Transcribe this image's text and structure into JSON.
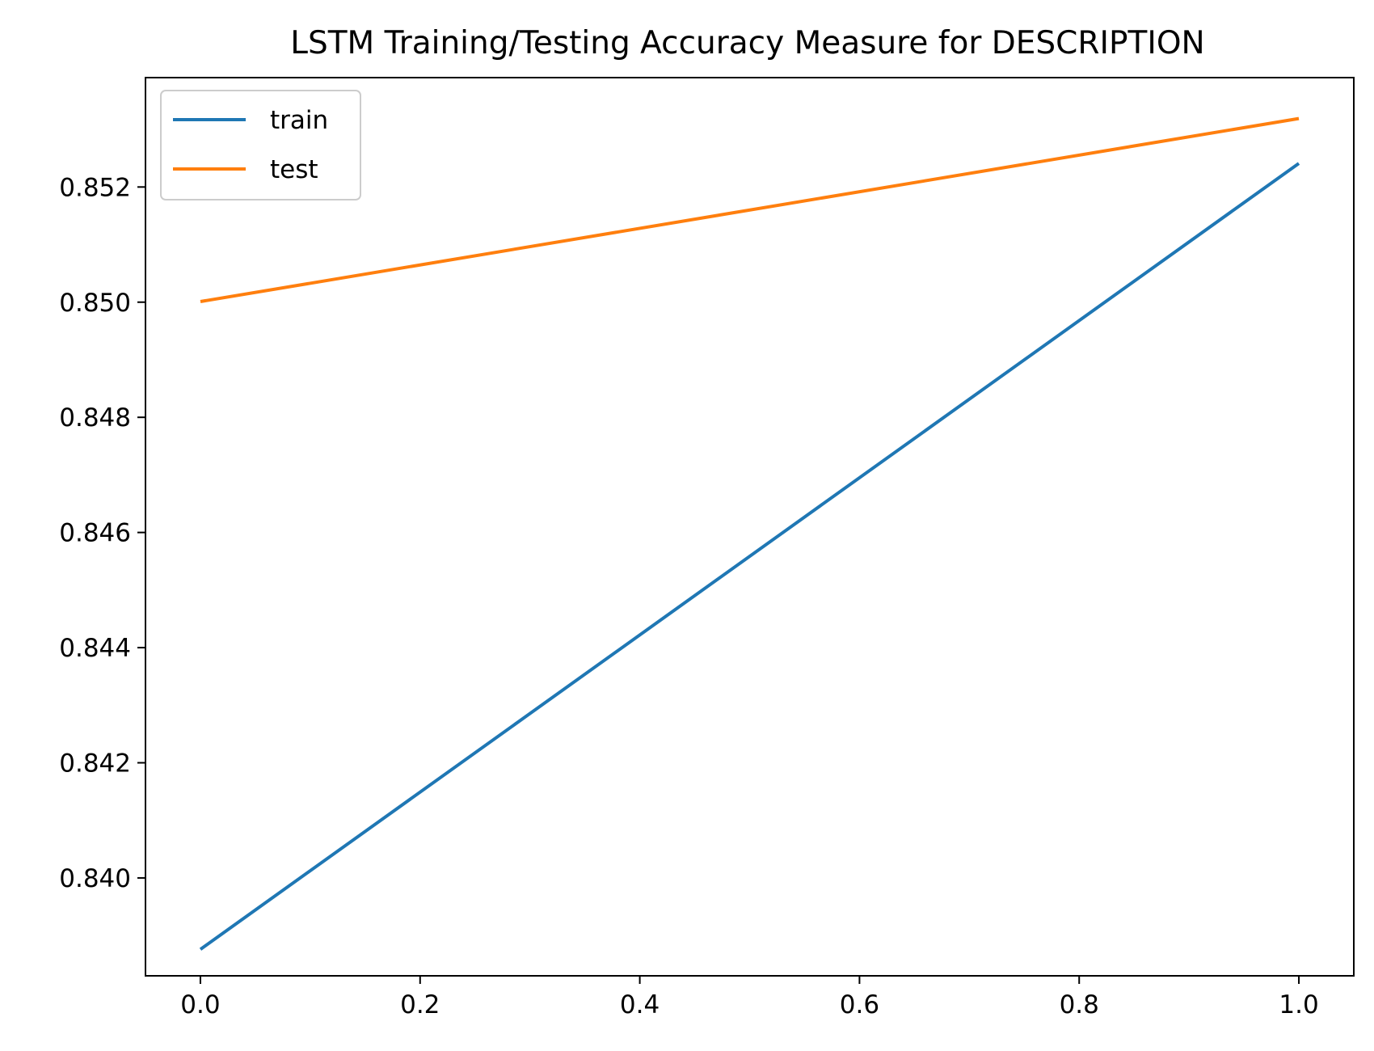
{
  "chart_data": {
    "type": "line",
    "title": "LSTM Training/Testing Accuracy Measure for DESCRIPTION",
    "xlabel": "",
    "ylabel": "",
    "xlim": [
      -0.05,
      1.05
    ],
    "ylim": [
      0.8383,
      0.8539
    ],
    "x_ticks": [
      "0.0",
      "0.2",
      "0.4",
      "0.6",
      "0.8",
      "1.0"
    ],
    "y_ticks": [
      "0.840",
      "0.842",
      "0.844",
      "0.846",
      "0.848",
      "0.850",
      "0.852"
    ],
    "grid": false,
    "legend_position": "top-left",
    "series": [
      {
        "name": "train",
        "color": "#1f77b4",
        "x": [
          0,
          1
        ],
        "y": [
          0.83876,
          0.85241
        ]
      },
      {
        "name": "test",
        "color": "#ff7f0e",
        "x": [
          0,
          1
        ],
        "y": [
          0.85001,
          0.85319
        ]
      }
    ]
  }
}
